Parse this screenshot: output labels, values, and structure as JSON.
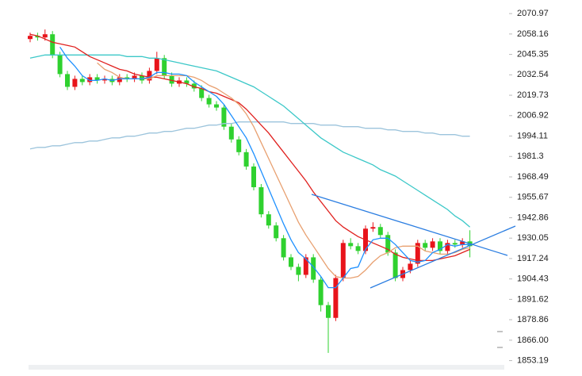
{
  "chart_data": {
    "type": "candlestick",
    "open": [
      2055,
      2057,
      2056,
      2058,
      2045,
      2033,
      2025,
      2030,
      2028,
      2031,
      2029,
      2030,
      2028,
      2031,
      2030,
      2032,
      2029,
      2035,
      2043,
      2032,
      2027,
      2029,
      2027,
      2024,
      2018,
      2014,
      2012,
      2000,
      1992,
      1984,
      1975,
      1962,
      1945,
      1938,
      1930,
      1918,
      1912,
      1907,
      1918,
      1904,
      1888,
      1880,
      1905,
      1927,
      1925,
      1922,
      1936,
      1937,
      1932,
      1921,
      1905,
      1910,
      1914,
      1927,
      1924,
      1928,
      1922,
      1927,
      1926,
      1928
    ],
    "high": [
      2059,
      2059,
      2061,
      2060,
      2047,
      2035,
      2032,
      2032,
      2033,
      2033,
      2032,
      2032,
      2033,
      2033,
      2034,
      2034,
      2037,
      2047,
      2045,
      2034,
      2031,
      2031,
      2029,
      2026,
      2020,
      2016,
      2014,
      2002,
      1994,
      1986,
      1977,
      1964,
      1947,
      1940,
      1932,
      1920,
      1914,
      1920,
      1920,
      1906,
      1890,
      1907,
      1929,
      1930,
      1927,
      1938,
      1940,
      1939,
      1934,
      1923,
      1912,
      1916,
      1929,
      1929,
      1930,
      1930,
      1929,
      1929,
      1930,
      1935
    ],
    "low": [
      2053,
      2054,
      2054,
      2043,
      2031,
      2023,
      2023,
      2026,
      2026,
      2027,
      2027,
      2026,
      2026,
      2028,
      2028,
      2027,
      2027,
      2033,
      2030,
      2025,
      2025,
      2025,
      2022,
      2016,
      2012,
      2010,
      1998,
      1990,
      1982,
      1973,
      1960,
      1943,
      1936,
      1928,
      1916,
      1910,
      1903,
      1905,
      1902,
      1884,
      1858,
      1878,
      1903,
      1923,
      1920,
      1920,
      1934,
      1930,
      1919,
      1903,
      1903,
      1908,
      1912,
      1922,
      1922,
      1920,
      1920,
      1924,
      1924,
      1918
    ],
    "close": [
      2057,
      2056,
      2058,
      2045,
      2033,
      2025,
      2030,
      2028,
      2031,
      2029,
      2030,
      2028,
      2031,
      2030,
      2032,
      2029,
      2035,
      2043,
      2032,
      2027,
      2029,
      2027,
      2024,
      2018,
      2014,
      2012,
      2000,
      1992,
      1984,
      1975,
      1962,
      1945,
      1938,
      1930,
      1918,
      1912,
      1907,
      1918,
      1904,
      1888,
      1880,
      1905,
      1927,
      1925,
      1922,
      1936,
      1937,
      1932,
      1921,
      1905,
      1910,
      1914,
      1927,
      1924,
      1928,
      1922,
      1927,
      1926,
      1928,
      1925
    ],
    "up_color": "#e8141b",
    "down_color": "#2fd12f",
    "lines": [
      {
        "color": "#9cc4dc",
        "values": [
          1986,
          1987,
          1987,
          1988,
          1988,
          1989,
          1990,
          1990,
          1991,
          1991,
          1992,
          1993,
          1993,
          1994,
          1994,
          1995,
          1996,
          1996,
          1997,
          1997,
          1998,
          1999,
          1999,
          2000,
          2001,
          2001,
          2002,
          2002,
          2003,
          2003,
          2003,
          2003,
          2003,
          2003,
          2003,
          2002,
          2002,
          2002,
          2002,
          2001,
          2001,
          2001,
          2000,
          2000,
          2000,
          1999,
          1999,
          1999,
          1998,
          1998,
          1997,
          1997,
          1997,
          1996,
          1996,
          1995,
          1995,
          1995,
          1994,
          1994
        ]
      },
      {
        "color": "#3cc8c8",
        "values": [
          2043,
          2044,
          2045,
          2045,
          2045,
          2045,
          2045,
          2045,
          2045,
          2045,
          2045,
          2045,
          2045,
          2044,
          2044,
          2044,
          2043,
          2043,
          2042,
          2041,
          2040,
          2039,
          2038,
          2037,
          2036,
          2035,
          2033,
          2031,
          2029,
          2027,
          2025,
          2022,
          2019,
          2016,
          2013,
          2009,
          2005,
          2001,
          1997,
          1993,
          1990,
          1987,
          1984,
          1982,
          1980,
          1978,
          1976,
          1973,
          1971,
          1969,
          1966,
          1963,
          1960,
          1957,
          1954,
          1951,
          1948,
          1944,
          1941,
          1937
        ]
      },
      {
        "color": "#e0201e",
        "values": [
          2058,
          2057,
          2055,
          2053,
          2052,
          2051,
          2050,
          2047,
          2044,
          2042,
          2040,
          2038,
          2036,
          2035,
          2033,
          2032,
          2031,
          2031,
          2030,
          2029,
          2028,
          2027,
          2025,
          2024,
          2022,
          2021,
          2019,
          2017,
          2015,
          2011,
          2006,
          2001,
          1996,
          1990,
          1984,
          1978,
          1972,
          1966,
          1959,
          1953,
          1947,
          1941,
          1937,
          1934,
          1931,
          1929,
          1927,
          1925,
          1923,
          1920,
          1918,
          1917,
          1916,
          1916,
          1916,
          1917,
          1918,
          1919,
          1921,
          1923
        ]
      },
      {
        "color": "#e8a070",
        "values": [
          null,
          null,
          null,
          null,
          null,
          null,
          null,
          null,
          null,
          2040,
          2036,
          2034,
          2031,
          2030,
          2030,
          2030,
          2030,
          2032,
          2032,
          2032,
          2032,
          2032,
          2031,
          2029,
          2026,
          2024,
          2021,
          2018,
          2014,
          2008,
          2000,
          1990,
          1980,
          1970,
          1960,
          1950,
          1940,
          1932,
          1925,
          1918,
          1911,
          1906,
          1905,
          1905,
          1906,
          1910,
          1915,
          1919,
          1921,
          1924,
          1925,
          1925,
          1925,
          1922,
          1921,
          1920,
          1920,
          1921,
          1923,
          1924
        ]
      },
      {
        "color": "#1e90ff",
        "values": [
          null,
          null,
          null,
          null,
          2050,
          2043,
          2038,
          2032,
          2029,
          2029,
          2030,
          2029,
          2030,
          2030,
          2030,
          2030,
          2031,
          2034,
          2034,
          2033,
          2033,
          2032,
          2028,
          2025,
          2022,
          2019,
          2014,
          2007,
          2000,
          1993,
          1983,
          1972,
          1961,
          1950,
          1939,
          1929,
          1921,
          1917,
          1912,
          1906,
          1899,
          1899,
          1905,
          1911,
          1912,
          1923,
          1929,
          1930,
          1930,
          1926,
          1921,
          1916,
          1915,
          1916,
          1921,
          1923,
          1926,
          1925,
          1926,
          1926
        ]
      }
    ],
    "ylim": [
      1849,
      2079.5
    ],
    "yticks": [
      2070.97,
      2058.16,
      2045.35,
      2032.54,
      2019.73,
      2006.92,
      1994.11,
      1981.3,
      1968.49,
      1955.67,
      1942.86,
      1930.05,
      1917.24,
      1904.43,
      1891.62,
      1878.86,
      {
        "value": 1866,
        "label": "1866.00"
      },
      1853.19
    ]
  }
}
